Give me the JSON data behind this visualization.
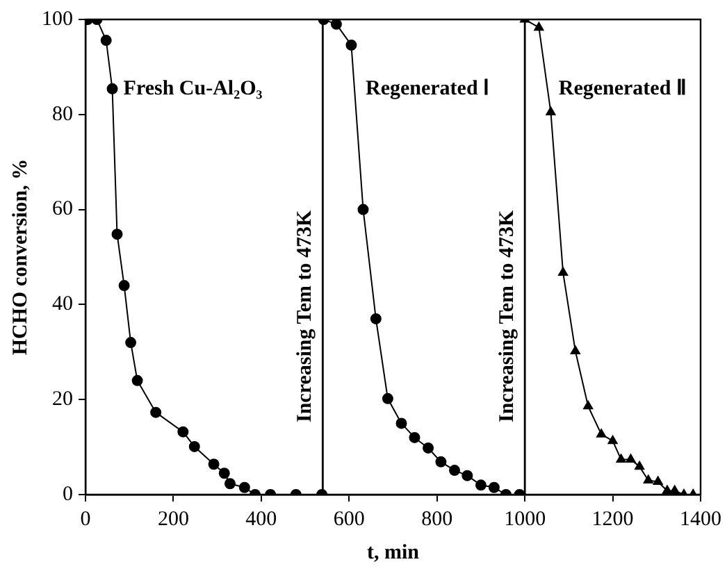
{
  "chart_data": {
    "type": "line",
    "xlabel": "t, min",
    "ylabel": "HCHO conversion, %",
    "xlim": [
      0,
      1400
    ],
    "ylim": [
      0,
      100
    ],
    "xticks": [
      0,
      200,
      400,
      600,
      800,
      1000,
      1200,
      1400
    ],
    "yticks": [
      0,
      20,
      40,
      60,
      80,
      100
    ],
    "grid": false,
    "legend": false,
    "line_style": "solid",
    "series": [
      {
        "name": "Fresh Cu-Al₂O₃",
        "color": "#000000",
        "marker": "circle",
        "x": [
          5,
          26,
          47,
          61,
          72,
          88,
          103,
          118,
          160,
          222,
          248,
          292,
          316,
          329,
          362,
          386,
          421,
          479,
          538
        ],
        "values": [
          100,
          100,
          95.6,
          85.4,
          54.8,
          44,
          32,
          24,
          17.3,
          13.2,
          10.1,
          6.4,
          4.5,
          2.3,
          1.5,
          0,
          0,
          0,
          0
        ]
      },
      {
        "name": "Regenerated Ⅰ",
        "color": "#000000",
        "marker": "circle",
        "x": [
          542,
          571,
          605,
          632,
          661,
          688,
          719,
          749,
          780,
          809,
          840,
          869,
          900,
          930,
          957,
          988
        ],
        "values": [
          100,
          99,
          94.6,
          60,
          37,
          20.2,
          15,
          12,
          9.8,
          6.9,
          5.1,
          4,
          2,
          1.5,
          0,
          0
        ]
      },
      {
        "name": "Regenerated Ⅱ",
        "color": "#000000",
        "marker": "triangle",
        "x": [
          1000,
          1032,
          1059,
          1087,
          1115,
          1144,
          1174,
          1200,
          1219,
          1241,
          1261,
          1281,
          1303,
          1324,
          1341,
          1362,
          1383
        ],
        "values": [
          100,
          98.3,
          80.5,
          46.7,
          30.2,
          18.6,
          12.7,
          11.3,
          7.4,
          7.4,
          5.9,
          3,
          2.7,
          0.8,
          0.8,
          0,
          0
        ]
      }
    ],
    "ref_lines": [
      {
        "axis": "x",
        "value": 540,
        "label": "Increasing Tem to 473K",
        "color": "#000000"
      },
      {
        "axis": "x",
        "value": 1000,
        "label": "Increasing Tem to 473K",
        "color": "#000000"
      }
    ]
  }
}
